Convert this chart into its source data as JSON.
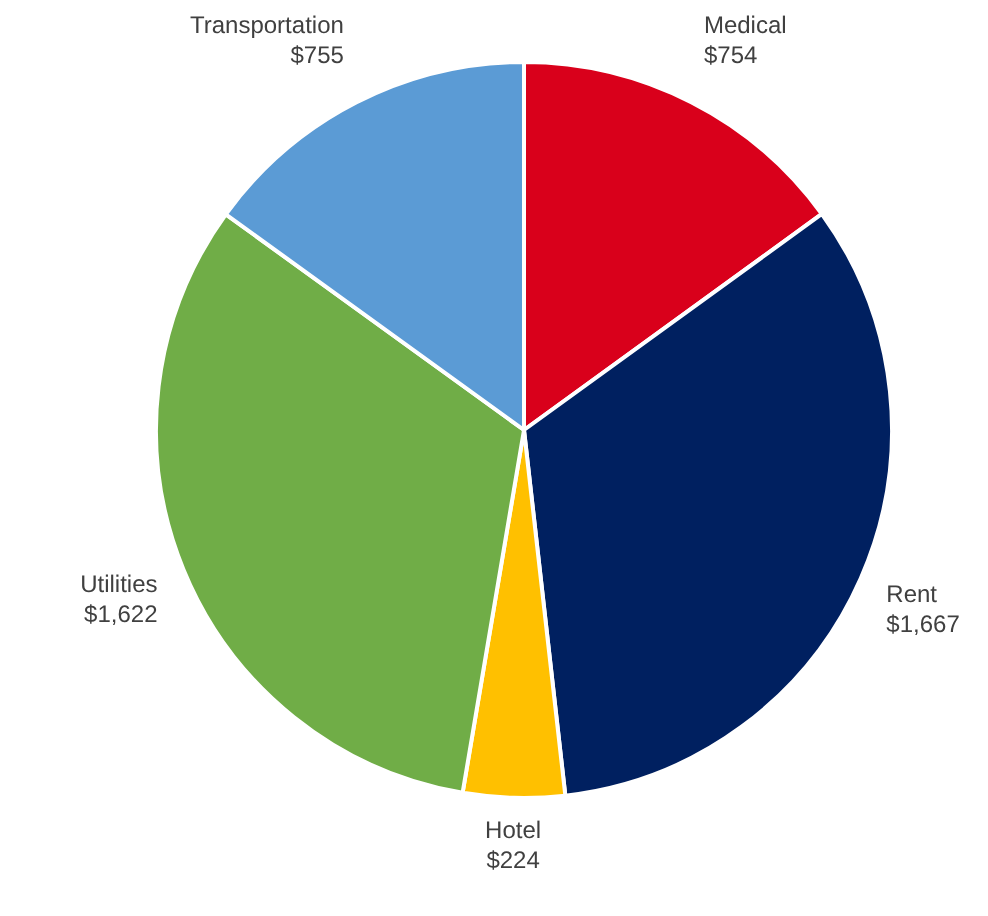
{
  "chart_data": {
    "type": "pie",
    "categories": [
      "Medical",
      "Rent",
      "Hotel",
      "Utilities",
      "Transportation"
    ],
    "values": [
      754,
      1667,
      224,
      1622,
      755
    ],
    "value_labels": [
      "$754",
      "$1,667",
      "$224",
      "$1,622",
      "$755"
    ],
    "colors": [
      "#d9001b",
      "#002060",
      "#ffc000",
      "#70ad47",
      "#5b9bd5"
    ],
    "legend": false
  }
}
